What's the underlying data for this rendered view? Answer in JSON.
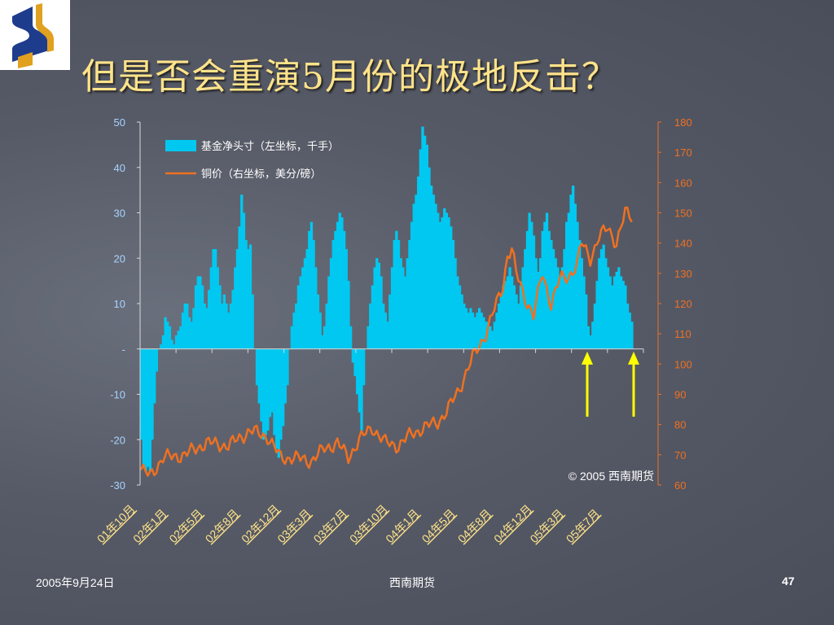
{
  "slide": {
    "title": "但是否会重演5月份的极地反击？",
    "footer_date": "2005年9月24日",
    "footer_center": "西南期货",
    "page_number": "47"
  },
  "colors": {
    "bar": "#00c8f0",
    "line": "#f07020",
    "left_axis_text": "#a8d4ff",
    "right_axis_text": "#f07020",
    "title": "#ffe38a",
    "arrows": "#ffff00"
  },
  "chart_data": {
    "type": "bar+line",
    "legend": [
      {
        "name": "基金净头寸（左坐标，千手）",
        "kind": "bar"
      },
      {
        "name": "铜价（右坐标，美分/磅）",
        "kind": "line"
      }
    ],
    "legend_position": "top-left",
    "annotation": "© 2005 西南期货",
    "y_left": {
      "ticks": [
        "50",
        "40",
        "30",
        "20",
        "10",
        "-",
        "-10",
        "-20",
        "-30"
      ],
      "min": -30,
      "max": 50
    },
    "y_right": {
      "ticks": [
        "180",
        "170",
        "160",
        "150",
        "140",
        "130",
        "120",
        "110",
        "100",
        "90",
        "80",
        "70",
        "60"
      ],
      "min": 60,
      "max": 180
    },
    "x_tick_labels": [
      "01年10月",
      "02年1月",
      "02年5月",
      "02年8月",
      "02年12月",
      "03年3月",
      "03年7月",
      "03年10月",
      "04年1月",
      "04年5月",
      "04年8月",
      "04年12月",
      "05年3月",
      "05年7月"
    ],
    "arrow_markers": [
      "05年4月底",
      "05年9月"
    ],
    "fund_net_position": [
      -20,
      -26,
      -27,
      -26,
      -27,
      -20,
      -12,
      -5,
      0,
      1,
      3,
      7,
      6,
      5,
      2,
      1,
      3,
      4,
      5,
      8,
      10,
      10,
      7,
      6,
      9,
      14,
      16,
      16,
      14,
      10,
      9,
      13,
      18,
      22,
      22,
      18,
      14,
      10,
      12,
      10,
      8,
      10,
      13,
      18,
      22,
      27,
      34,
      30,
      24,
      22,
      23,
      12,
      0,
      -8,
      -12,
      -16,
      -20,
      -19,
      -18,
      -15,
      -14,
      -19,
      -22,
      -24,
      -20,
      -17,
      -12,
      -8,
      0,
      5,
      8,
      10,
      14,
      16,
      18,
      20,
      22,
      26,
      28,
      24,
      18,
      12,
      8,
      3,
      5,
      10,
      16,
      20,
      24,
      26,
      28,
      30,
      29,
      26,
      22,
      15,
      5,
      -3,
      -6,
      -10,
      -14,
      -18,
      -8,
      0,
      5,
      10,
      14,
      18,
      20,
      19,
      16,
      10,
      8,
      6,
      12,
      18,
      24,
      26,
      24,
      20,
      18,
      16,
      20,
      24,
      28,
      32,
      34,
      38,
      44,
      49,
      47,
      45,
      40,
      36,
      34,
      32,
      30,
      28,
      29,
      31,
      30,
      29,
      27,
      24,
      20,
      16,
      14,
      12,
      10,
      9,
      8,
      9,
      8,
      7,
      8,
      9,
      8,
      7,
      6,
      6,
      5,
      4,
      6,
      8,
      10,
      12,
      14,
      15,
      16,
      18,
      16,
      14,
      12,
      10,
      14,
      18,
      22,
      26,
      30,
      28,
      25,
      20,
      17,
      20,
      26,
      28,
      30,
      26,
      24,
      22,
      20,
      18,
      16,
      18,
      22,
      28,
      30,
      34,
      36,
      32,
      28,
      24,
      20,
      16,
      12,
      5,
      3,
      6,
      10,
      15,
      20,
      22,
      23,
      20,
      18,
      16,
      14,
      16,
      17,
      18,
      16,
      15,
      14,
      10,
      8,
      6
    ]
  }
}
